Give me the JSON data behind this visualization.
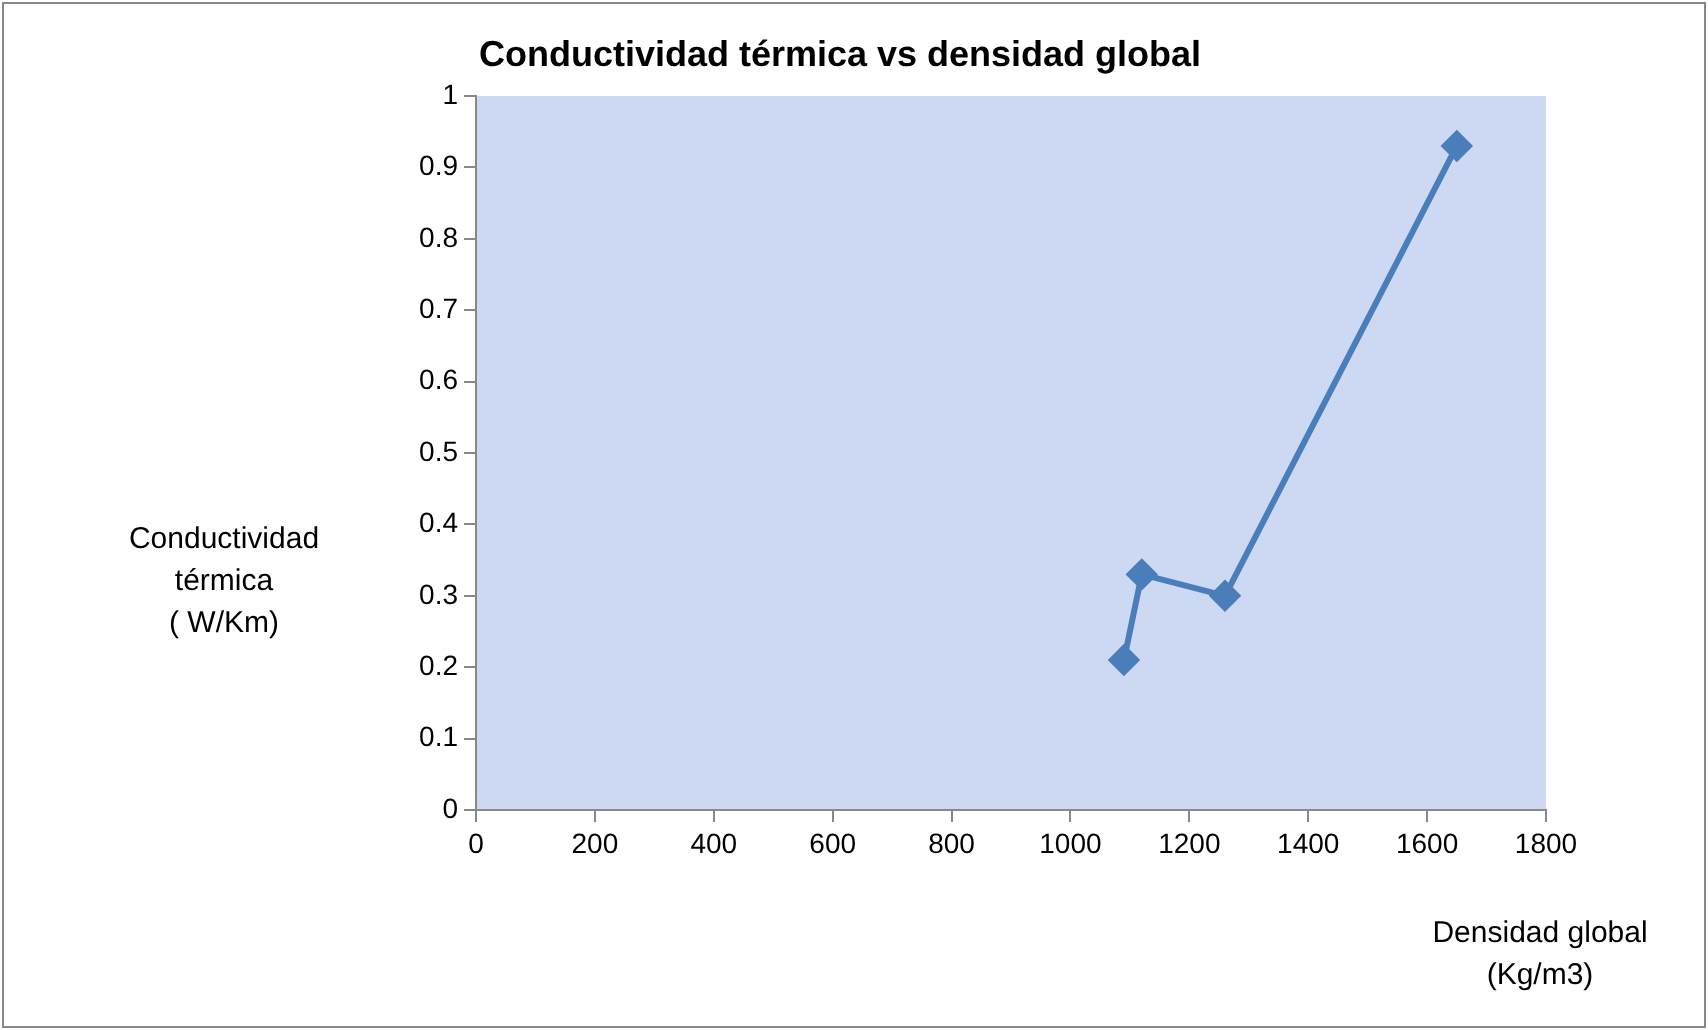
{
  "chart_data": {
    "type": "line",
    "title": "Conductividad térmica vs densidad global",
    "xlabel": "Densidad global\n(Kg/m3)",
    "ylabel": "Conductividad\ntérmica\n( W/Km)",
    "x": [
      1090,
      1120,
      1260,
      1650
    ],
    "series": [
      {
        "color": "#4a7ebb",
        "values": [
          0.21,
          0.33,
          0.3,
          0.93
        ]
      }
    ],
    "xlim": [
      0,
      1800
    ],
    "xticks": [
      0,
      200,
      400,
      600,
      800,
      1000,
      1200,
      1400,
      1600,
      1800
    ],
    "ylim": [
      0,
      1
    ],
    "yticks": [
      0,
      0.1,
      0.2,
      0.3,
      0.4,
      0.5,
      0.6,
      0.7,
      0.8,
      0.9,
      1
    ],
    "grid": false,
    "legend": false,
    "marker": "diamond",
    "line_style": "solid"
  }
}
